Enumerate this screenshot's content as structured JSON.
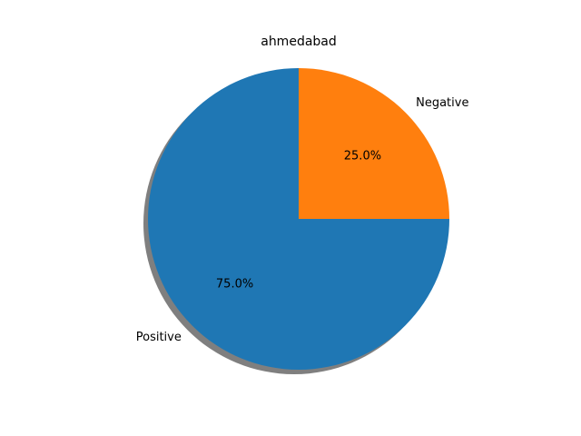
{
  "chart_data": {
    "type": "pie",
    "title": "ahmedabad",
    "slices": [
      {
        "label": "Negative",
        "value": 25.0,
        "pct_label": "25.0%",
        "color": "#ff7f0e"
      },
      {
        "label": "Positive",
        "value": 75.0,
        "pct_label": "75.0%",
        "color": "#1f77b4"
      }
    ],
    "shadow": true,
    "shadow_color": "#000000",
    "start_angle_deg": 90,
    "direction": "counterclockwise-from-top for Positive, Negative occupies top-right quadrant"
  }
}
